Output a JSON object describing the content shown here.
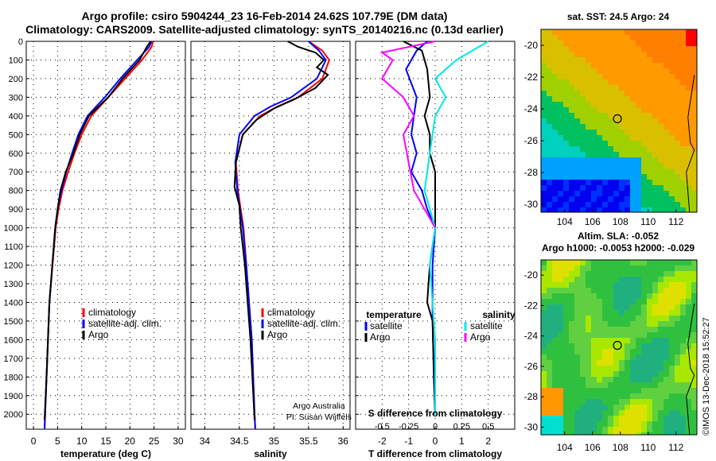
{
  "header": {
    "title_line1": "Argo profile: csiro 5904244_23 16-Feb-2014 24.62S 107.79E (DM data)",
    "title_line2": "Climatology: CARS2009. Satellite-adjusted climatology: synTS_20140216.nc (0.13d earlier)"
  },
  "map_sst": {
    "title": "sat. SST: 24.5 Argo: 24"
  },
  "map_sla": {
    "title_line1": "Altim. SLA: -0.052",
    "title_line2": "Argo h1000: -0.0053 h2000: -0.029"
  },
  "watermark": "©IMOS 13-Dec-2018 15:52:27",
  "colors": {
    "climatology": "#ff0000",
    "satellite": "#0000ff",
    "argo": "#000000",
    "sat_salinity": "#00e8e8",
    "argo_salinity": "#ff00ff"
  },
  "chart_data": [
    {
      "type": "line",
      "xlabel": "temperature (deg C)",
      "ylim": [
        2080,
        0
      ],
      "xlim": [
        -1.5,
        31.5
      ],
      "xticks": [
        "0",
        "5",
        "10",
        "15",
        "20",
        "25",
        "30"
      ],
      "yticks": [
        "0",
        "100",
        "200",
        "300",
        "400",
        "500",
        "600",
        "700",
        "800",
        "900",
        "1000",
        "1100",
        "1200",
        "1300",
        "1400",
        "1500",
        "1600",
        "1700",
        "1800",
        "1900",
        "2000"
      ],
      "legend": [
        "climatology",
        "satellite-adj. clim.",
        "Argo"
      ],
      "series": [
        {
          "name": "climatology",
          "x": [
            24.8,
            24.5,
            22.5,
            19,
            15.5,
            12,
            10,
            8.5,
            7.2,
            6,
            5.2,
            4.6,
            3.3,
            2.7,
            2.3
          ],
          "y": [
            0,
            30,
            100,
            200,
            300,
            400,
            500,
            600,
            700,
            800,
            900,
            1000,
            1400,
            1800,
            2080
          ]
        },
        {
          "name": "satellite-adj. clim.",
          "x": [
            24.5,
            24,
            21.5,
            18,
            14.8,
            11.2,
            9.3,
            8,
            6.8,
            5.8,
            5,
            4.5,
            3.3,
            2.7,
            2.3
          ],
          "y": [
            0,
            30,
            100,
            200,
            300,
            400,
            500,
            600,
            700,
            800,
            900,
            1000,
            1400,
            1800,
            2080
          ]
        },
        {
          "name": "Argo",
          "x": [
            24.3,
            23.5,
            22,
            18.5,
            15.5,
            11.5,
            9.6,
            8.3,
            6.7,
            5.6,
            5,
            4.5,
            3.3,
            2.7,
            2.3
          ],
          "y": [
            0,
            30,
            100,
            200,
            300,
            400,
            500,
            600,
            700,
            800,
            900,
            1000,
            1400,
            1800,
            2030
          ]
        }
      ]
    },
    {
      "type": "line",
      "xlabel": "salinity",
      "ylim": [
        2080,
        0
      ],
      "xlim": [
        33.8,
        36.1
      ],
      "xticks": [
        "34",
        "34.5",
        "35",
        "35.5",
        "36"
      ],
      "legend": [
        "climatology",
        "satellite-adj. clim.",
        "Argo"
      ],
      "annotation": [
        "Argo Australia",
        "PI: Susan Wijffels"
      ],
      "series": [
        {
          "name": "climatology",
          "x": [
            35.5,
            35.7,
            35.8,
            35.7,
            35.35,
            35.05,
            34.8,
            34.55,
            34.45,
            34.48,
            34.52,
            34.56,
            34.6,
            34.68,
            34.72,
            34.73
          ],
          "y": [
            0,
            50,
            100,
            200,
            300,
            350,
            400,
            500,
            650,
            800,
            900,
            1000,
            1200,
            1600,
            2000,
            2080
          ]
        },
        {
          "name": "satellite-adj. clim.",
          "x": [
            35.5,
            35.65,
            35.75,
            35.62,
            35.25,
            34.95,
            34.72,
            34.5,
            34.44,
            34.47,
            34.51,
            34.55,
            34.6,
            34.68,
            34.72,
            34.73
          ],
          "y": [
            0,
            50,
            100,
            200,
            300,
            350,
            400,
            500,
            650,
            800,
            900,
            1000,
            1200,
            1600,
            2000,
            2080
          ]
        },
        {
          "name": "Argo",
          "x": [
            35.2,
            35.35,
            35.6,
            35.72,
            35.62,
            35.78,
            35.6,
            35.3,
            35.0,
            34.75,
            34.55,
            34.45,
            34.43,
            34.5,
            34.52,
            34.58,
            34.66,
            34.72
          ],
          "y": [
            0,
            30,
            60,
            100,
            140,
            180,
            250,
            310,
            360,
            420,
            500,
            650,
            780,
            880,
            1000,
            1200,
            1600,
            2030
          ]
        }
      ]
    },
    {
      "type": "line",
      "xlabel": "T difference from climatology",
      "sublabel": "S difference from climatology",
      "ylim": [
        2080,
        0
      ],
      "xlim": [
        -3,
        3
      ],
      "xticks": [
        "-2",
        "-1",
        "0",
        "1",
        "2"
      ],
      "sticks": [
        "-0.5",
        "-0.25",
        "0",
        "0.25",
        "0.5"
      ],
      "legend_temperature_header": "temperature",
      "legend_salinity_header": "salinity",
      "legend_temperature": [
        "satellite",
        "Argo"
      ],
      "legend_salinity": [
        "satellite",
        "Argo"
      ],
      "series": [
        {
          "name": "satellite",
          "x": [
            -0.3,
            -0.7,
            -1.1,
            -0.7,
            -0.8,
            -0.9,
            -0.7,
            -0.9,
            -0.5,
            -0.3,
            0,
            -0.1,
            -0.1,
            -0.05,
            0
          ],
          "y": [
            0,
            50,
            150,
            300,
            400,
            500,
            600,
            700,
            800,
            900,
            1000,
            1200,
            1500,
            1800,
            2000
          ]
        },
        {
          "name": "Argo",
          "x": [
            -1.2,
            -0.5,
            -0.3,
            -0.2,
            -0.4,
            -0.2,
            -0.2,
            0,
            0,
            0,
            0,
            -0.2,
            -0.3,
            -0.1,
            0
          ],
          "y": [
            0,
            50,
            150,
            300,
            400,
            500,
            600,
            700,
            800,
            900,
            1000,
            1200,
            1400,
            1500,
            2000
          ]
        },
        {
          "name": "satellite",
          "x": [
            0.5,
            0.2,
            0,
            0.1,
            0,
            -0.05,
            -0.1,
            0,
            -0.05,
            0,
            0
          ],
          "y": [
            0,
            100,
            200,
            300,
            400,
            600,
            800,
            1000,
            1200,
            1600,
            2000
          ]
        },
        {
          "name": "Argo",
          "x": [
            0,
            -0.5,
            -0.4,
            -0.5,
            -0.3,
            -0.2,
            -0.3,
            -0.2,
            -0.1,
            0
          ],
          "y": [
            0,
            60,
            100,
            200,
            300,
            400,
            500,
            800,
            900,
            1000
          ]
        }
      ]
    },
    {
      "type": "heatmap",
      "title": "sat. SST: 24.5 Argo: 24",
      "xticks": [
        "104",
        "106",
        "108",
        "110",
        "112"
      ],
      "yticks": [
        "-20",
        "-22",
        "-24",
        "-26",
        "-28",
        "-30"
      ],
      "profile_marker": {
        "lon": 107.79,
        "lat": -24.62
      }
    },
    {
      "type": "heatmap",
      "title": "Altim. SLA: -0.052",
      "xticks": [
        "104",
        "106",
        "108",
        "110",
        "112"
      ],
      "yticks": [
        "-20",
        "-22",
        "-24",
        "-26",
        "-28",
        "-30"
      ],
      "profile_marker": {
        "lon": 107.79,
        "lat": -24.62
      }
    }
  ]
}
